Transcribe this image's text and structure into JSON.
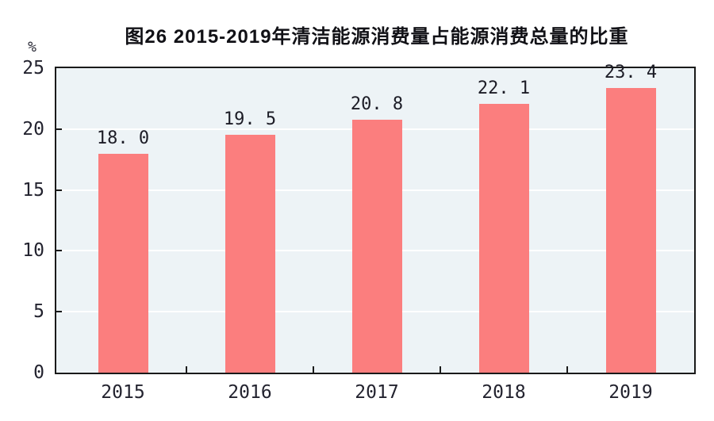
{
  "chart_data": {
    "type": "bar",
    "title": "图26  2015-2019年清洁能源消费量占能源消费总量的比重",
    "unit_label": "%",
    "categories": [
      "2015",
      "2016",
      "2017",
      "2018",
      "2019"
    ],
    "values": [
      18.0,
      19.5,
      20.8,
      22.1,
      23.4
    ],
    "value_labels": [
      "18. 0",
      "19. 5",
      "20. 8",
      "22. 1",
      "23. 4"
    ],
    "ylabel": "",
    "xlabel": "",
    "ylim": [
      0,
      25
    ],
    "yticks": [
      0,
      5,
      10,
      15,
      20,
      25
    ],
    "grid": "horizontal-white-lines-every-5",
    "legend": "none",
    "colors": {
      "bar": "#fb7e7e",
      "plot_background": "#edf3f6",
      "axis": "#1a1a1a",
      "grid_line": "#ffffff",
      "text": "#21212b"
    }
  }
}
